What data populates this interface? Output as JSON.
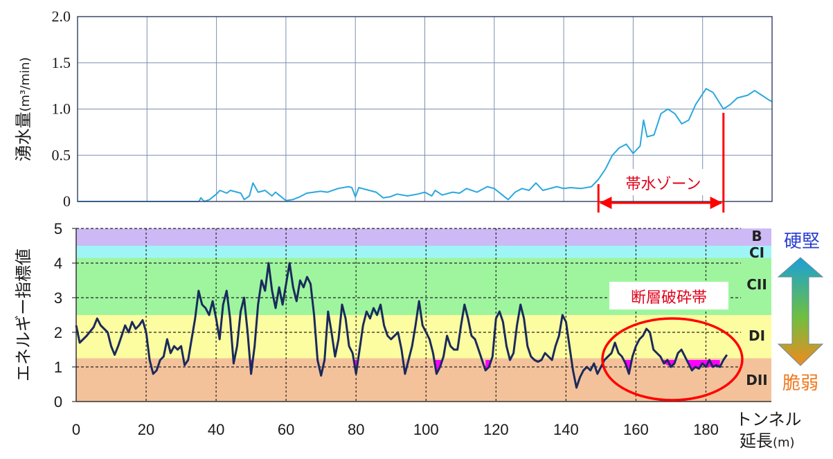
{
  "chart_data": [
    {
      "type": "line",
      "name": "inflow",
      "ylabel": "湧水量",
      "ylabel_unit": "(m³/min)",
      "ylim": [
        0,
        2.0
      ],
      "xlim": [
        0,
        200
      ],
      "yticks": [
        "0",
        "0.5",
        "1.0",
        "1.5",
        "2.0"
      ],
      "line_color": "#2aa7de",
      "grid": true,
      "points": [
        [
          0,
          0
        ],
        [
          20,
          0
        ],
        [
          35,
          0
        ],
        [
          35.5,
          0.04
        ],
        [
          36.5,
          0
        ],
        [
          38,
          0.02
        ],
        [
          40,
          0.08
        ],
        [
          41,
          0.12
        ],
        [
          43,
          0.09
        ],
        [
          44,
          0.12
        ],
        [
          47,
          0.09
        ],
        [
          48,
          0.02
        ],
        [
          49.5,
          0.06
        ],
        [
          50.5,
          0.2
        ],
        [
          52,
          0.1
        ],
        [
          54,
          0.12
        ],
        [
          56,
          0.06
        ],
        [
          57,
          0.1
        ],
        [
          59,
          0.04
        ],
        [
          60,
          0.01
        ],
        [
          62,
          0.02
        ],
        [
          64,
          0.05
        ],
        [
          66,
          0.09
        ],
        [
          68,
          0.1
        ],
        [
          70,
          0.11
        ],
        [
          72,
          0.1
        ],
        [
          75,
          0.14
        ],
        [
          78,
          0.16
        ],
        [
          79,
          0.15
        ],
        [
          80,
          0.05
        ],
        [
          81,
          0.15
        ],
        [
          84,
          0.12
        ],
        [
          86,
          0.1
        ],
        [
          88,
          0.04
        ],
        [
          90,
          0.05
        ],
        [
          92,
          0.08
        ],
        [
          95,
          0.06
        ],
        [
          98,
          0.08
        ],
        [
          100,
          0.1
        ],
        [
          102,
          0.06
        ],
        [
          103,
          0.12
        ],
        [
          105,
          0.07
        ],
        [
          108,
          0.1
        ],
        [
          110,
          0.09
        ],
        [
          112,
          0.14
        ],
        [
          115,
          0.1
        ],
        [
          118,
          0.16
        ],
        [
          120,
          0.14
        ],
        [
          122,
          0.08
        ],
        [
          124,
          0.02
        ],
        [
          126,
          0.1
        ],
        [
          128,
          0.14
        ],
        [
          130,
          0.12
        ],
        [
          132,
          0.2
        ],
        [
          134,
          0.12
        ],
        [
          136,
          0.14
        ],
        [
          138,
          0.16
        ],
        [
          140,
          0.14
        ],
        [
          142,
          0.15
        ],
        [
          145,
          0.14
        ],
        [
          148,
          0.16
        ],
        [
          150,
          0.24
        ],
        [
          152,
          0.35
        ],
        [
          154,
          0.5
        ],
        [
          156,
          0.58
        ],
        [
          158,
          0.62
        ],
        [
          160,
          0.52
        ],
        [
          162,
          0.6
        ],
        [
          163,
          0.88
        ],
        [
          164,
          0.7
        ],
        [
          166,
          0.72
        ],
        [
          168,
          0.95
        ],
        [
          170,
          1.0
        ],
        [
          172,
          0.95
        ],
        [
          174,
          0.84
        ],
        [
          176,
          0.88
        ],
        [
          178,
          1.05
        ],
        [
          181,
          1.22
        ],
        [
          183,
          1.18
        ],
        [
          186,
          1.0
        ],
        [
          188,
          1.05
        ],
        [
          190,
          1.12
        ],
        [
          193,
          1.15
        ],
        [
          195,
          1.2
        ],
        [
          197,
          1.15
        ],
        [
          199,
          1.1
        ],
        [
          200,
          1.08
        ]
      ],
      "annotation": {
        "label": "帯水ゾーン",
        "x_start": 150,
        "x_end": 186
      }
    },
    {
      "type": "line",
      "name": "energy-index",
      "ylabel": "エネルギー指標値",
      "xlabel_line1": "トンネル",
      "xlabel_line2": "延長",
      "xlabel_unit": "(m)",
      "ylim": [
        0,
        5
      ],
      "xlim": [
        0,
        190
      ],
      "yticks": [
        "0",
        "1",
        "2",
        "3",
        "4",
        "5"
      ],
      "xticks": [
        "0",
        "20",
        "40",
        "60",
        "80",
        "100",
        "120",
        "140",
        "160",
        "180"
      ],
      "line_color": "#1a2a5c",
      "fill_below": 1.2,
      "fill_color": "#ff00ff",
      "bands": [
        {
          "label": "DII",
          "from": 0,
          "to": 1.25,
          "color": "#f4c29a"
        },
        {
          "label": "DI",
          "from": 1.25,
          "to": 2.5,
          "color": "#fcfca0"
        },
        {
          "label": "CII",
          "from": 2.5,
          "to": 4.15,
          "color": "#9ef59e"
        },
        {
          "label": "CI",
          "from": 4.15,
          "to": 4.5,
          "color": "#9ff5f5"
        },
        {
          "label": "B",
          "from": 4.5,
          "to": 5.0,
          "color": "#cdb9f5"
        }
      ],
      "points": [
        [
          0,
          2.2
        ],
        [
          1,
          1.7
        ],
        [
          3,
          1.9
        ],
        [
          5,
          2.15
        ],
        [
          6,
          2.4
        ],
        [
          7,
          2.2
        ],
        [
          9,
          2.0
        ],
        [
          10,
          1.6
        ],
        [
          11,
          1.35
        ],
        [
          12,
          1.6
        ],
        [
          13,
          1.9
        ],
        [
          14,
          2.2
        ],
        [
          15,
          2.0
        ],
        [
          16,
          2.3
        ],
        [
          17,
          2.1
        ],
        [
          18,
          2.2
        ],
        [
          19,
          2.35
        ],
        [
          20,
          2.0
        ],
        [
          21,
          1.2
        ],
        [
          22,
          0.8
        ],
        [
          23,
          0.9
        ],
        [
          24,
          1.2
        ],
        [
          25,
          1.3
        ],
        [
          26,
          1.8
        ],
        [
          27,
          1.4
        ],
        [
          28,
          1.6
        ],
        [
          29,
          1.5
        ],
        [
          30,
          1.6
        ],
        [
          31,
          1.05
        ],
        [
          32,
          1.2
        ],
        [
          33,
          1.8
        ],
        [
          34,
          2.4
        ],
        [
          35,
          3.2
        ],
        [
          36,
          2.8
        ],
        [
          37,
          2.7
        ],
        [
          38,
          2.5
        ],
        [
          39,
          2.9
        ],
        [
          40,
          2.4
        ],
        [
          41,
          1.8
        ],
        [
          42,
          2.8
        ],
        [
          43,
          3.2
        ],
        [
          44,
          2.4
        ],
        [
          45,
          1.1
        ],
        [
          46,
          1.6
        ],
        [
          47,
          2.6
        ],
        [
          48,
          3.0
        ],
        [
          49,
          2.0
        ],
        [
          50,
          0.8
        ],
        [
          51,
          1.6
        ],
        [
          52,
          2.8
        ],
        [
          53,
          3.5
        ],
        [
          54,
          3.2
        ],
        [
          55,
          4.0
        ],
        [
          56,
          3.2
        ],
        [
          57,
          2.7
        ],
        [
          58,
          3.3
        ],
        [
          59,
          2.8
        ],
        [
          60,
          3.4
        ],
        [
          61,
          4.0
        ],
        [
          62,
          3.3
        ],
        [
          63,
          2.9
        ],
        [
          64,
          3.5
        ],
        [
          65,
          3.3
        ],
        [
          66,
          3.6
        ],
        [
          67,
          3.4
        ],
        [
          68,
          2.5
        ],
        [
          69,
          1.2
        ],
        [
          70,
          0.75
        ],
        [
          71,
          1.2
        ],
        [
          72,
          2.6
        ],
        [
          73,
          2.0
        ],
        [
          74,
          1.3
        ],
        [
          75,
          1.8
        ],
        [
          76,
          2.8
        ],
        [
          77,
          2.4
        ],
        [
          78,
          1.6
        ],
        [
          79,
          1.4
        ],
        [
          80,
          0.8
        ],
        [
          81,
          1.5
        ],
        [
          82,
          2.2
        ],
        [
          83,
          2.6
        ],
        [
          84,
          2.4
        ],
        [
          85,
          2.7
        ],
        [
          86,
          2.5
        ],
        [
          87,
          2.8
        ],
        [
          88,
          2.2
        ],
        [
          89,
          1.9
        ],
        [
          90,
          1.8
        ],
        [
          91,
          1.9
        ],
        [
          92,
          2.0
        ],
        [
          93,
          1.5
        ],
        [
          94,
          0.8
        ],
        [
          95,
          1.2
        ],
        [
          96,
          1.6
        ],
        [
          97,
          2.2
        ],
        [
          98,
          2.9
        ],
        [
          99,
          2.2
        ],
        [
          100,
          2.0
        ],
        [
          101,
          1.8
        ],
        [
          102,
          1.4
        ],
        [
          103,
          0.8
        ],
        [
          104,
          1.0
        ],
        [
          105,
          1.3
        ],
        [
          106,
          1.9
        ],
        [
          107,
          1.6
        ],
        [
          108,
          1.5
        ],
        [
          109,
          1.5
        ],
        [
          110,
          2.2
        ],
        [
          111,
          2.8
        ],
        [
          112,
          2.4
        ],
        [
          113,
          1.9
        ],
        [
          114,
          1.8
        ],
        [
          115,
          1.5
        ],
        [
          116,
          1.2
        ],
        [
          117,
          0.9
        ],
        [
          118,
          1.0
        ],
        [
          119,
          1.3
        ],
        [
          120,
          2.4
        ],
        [
          121,
          2.6
        ],
        [
          122,
          2.3
        ],
        [
          123,
          1.6
        ],
        [
          124,
          1.2
        ],
        [
          125,
          1.4
        ],
        [
          126,
          2.2
        ],
        [
          127,
          2.8
        ],
        [
          128,
          2.4
        ],
        [
          129,
          1.6
        ],
        [
          130,
          1.3
        ],
        [
          131,
          1.2
        ],
        [
          132,
          1.15
        ],
        [
          133,
          1.2
        ],
        [
          134,
          1.4
        ],
        [
          135,
          1.3
        ],
        [
          136,
          1.2
        ],
        [
          137,
          1.6
        ],
        [
          138,
          1.9
        ],
        [
          139,
          2.5
        ],
        [
          140,
          2.3
        ],
        [
          141,
          1.6
        ],
        [
          142,
          0.9
        ],
        [
          143,
          0.4
        ],
        [
          144,
          0.7
        ],
        [
          145,
          0.9
        ],
        [
          146,
          1.0
        ],
        [
          147,
          0.9
        ],
        [
          148,
          1.1
        ],
        [
          149,
          0.8
        ],
        [
          150,
          1.0
        ],
        [
          151,
          1.2
        ],
        [
          152,
          1.3
        ],
        [
          153,
          1.4
        ],
        [
          154,
          1.7
        ],
        [
          155,
          1.4
        ],
        [
          156,
          1.3
        ],
        [
          157,
          1.1
        ],
        [
          158,
          0.8
        ],
        [
          159,
          1.3
        ],
        [
          160,
          1.6
        ],
        [
          161,
          1.8
        ],
        [
          162,
          1.9
        ],
        [
          163,
          2.1
        ],
        [
          164,
          2.0
        ],
        [
          165,
          1.5
        ],
        [
          166,
          1.4
        ],
        [
          167,
          1.3
        ],
        [
          168,
          1.1
        ],
        [
          169,
          1.2
        ],
        [
          170,
          1.0
        ],
        [
          171,
          1.1
        ],
        [
          172,
          1.4
        ],
        [
          173,
          1.5
        ],
        [
          174,
          1.3
        ],
        [
          175,
          1.1
        ],
        [
          176,
          0.9
        ],
        [
          177,
          1.0
        ],
        [
          178,
          0.95
        ],
        [
          179,
          1.1
        ],
        [
          180,
          1.0
        ],
        [
          181,
          1.2
        ],
        [
          182,
          1.0
        ],
        [
          183,
          1.05
        ],
        [
          184,
          1.0
        ],
        [
          185,
          1.2
        ],
        [
          186,
          1.35
        ]
      ],
      "annotation": {
        "label": "断層破砕帯",
        "circle_center": [
          170.5,
          1.0
        ]
      },
      "side_labels": {
        "hard": "硬堅",
        "brittle": "脆弱"
      }
    }
  ]
}
